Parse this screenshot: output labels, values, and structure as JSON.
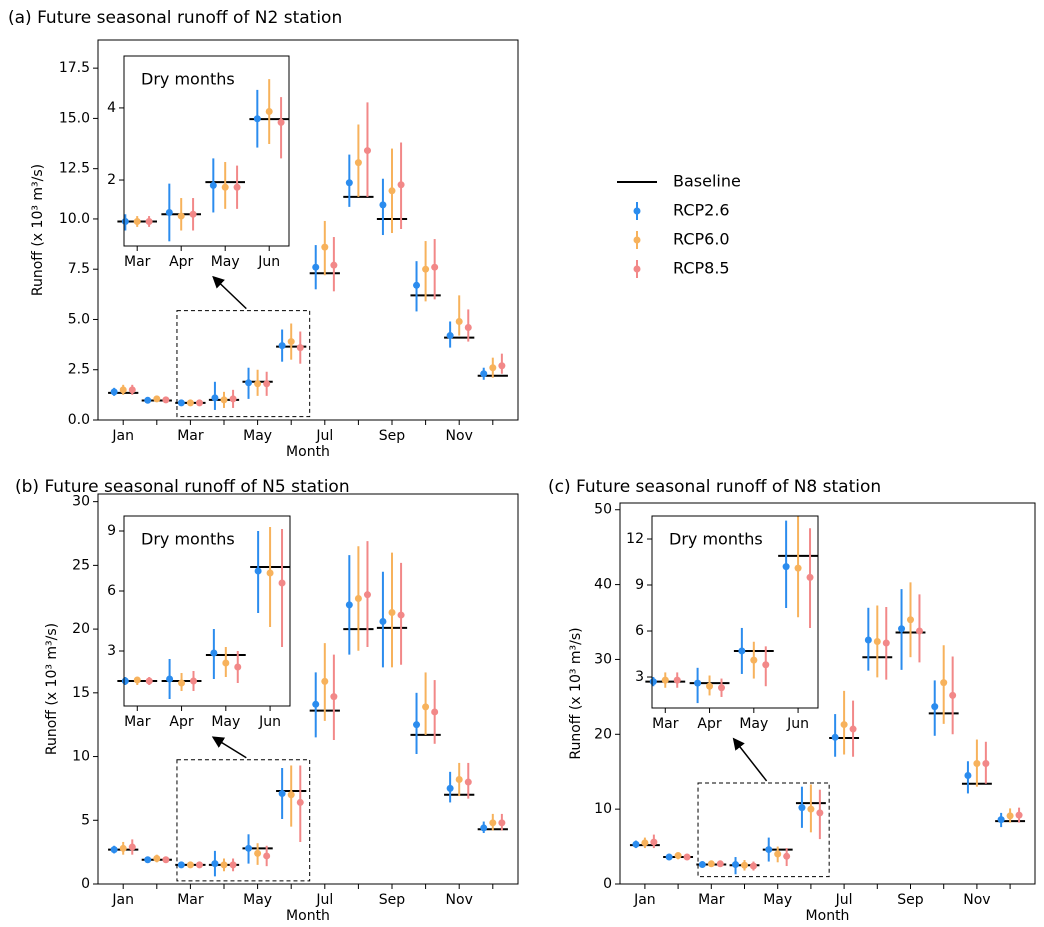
{
  "chart_data": [
    {
      "type": "errorbar",
      "title": "(a) Future seasonal runoff of N2 station",
      "x_label": "Month",
      "y_label": "Runoff (x 10³ m³/s)",
      "categories": [
        "Jan",
        null,
        "Mar",
        null,
        "May",
        null,
        "Jul",
        null,
        "Sep",
        null,
        "Nov",
        null
      ],
      "ylim": [
        0,
        18.9
      ],
      "yticks": [
        {
          "value": 0,
          "label": "0.0"
        },
        2.5,
        {
          "value": 5,
          "label": "5.0"
        },
        7.5,
        {
          "value": 10,
          "label": "10.0"
        },
        12.5,
        {
          "value": 15,
          "label": "15.0"
        },
        17.5
      ],
      "legend": "right",
      "series": [
        {
          "name": "Baseline",
          "marker": "hline",
          "color": "#000000",
          "values": [
            1.35,
            0.97,
            0.85,
            1.0,
            1.9,
            3.65,
            7.3,
            11.1,
            10.0,
            6.2,
            4.1,
            2.2
          ]
        },
        {
          "name": "RCP2.6",
          "marker": "errorbar",
          "color": "#2b8cee",
          "values": [
            1.4,
            0.98,
            0.85,
            1.1,
            1.85,
            3.7,
            7.6,
            11.8,
            10.7,
            6.7,
            4.2,
            2.3
          ],
          "lower": [
            1.2,
            0.85,
            0.7,
            0.5,
            1.05,
            2.9,
            6.5,
            10.6,
            9.2,
            5.4,
            3.6,
            2.0
          ],
          "upper": [
            1.6,
            1.1,
            1.0,
            1.9,
            2.6,
            4.5,
            8.7,
            13.2,
            12.0,
            7.9,
            4.9,
            2.6
          ]
        },
        {
          "name": "RCP6.0",
          "marker": "errorbar",
          "color": "#f7b25c",
          "values": [
            1.5,
            1.05,
            0.85,
            1.0,
            1.8,
            3.9,
            8.6,
            12.8,
            11.4,
            7.5,
            4.9,
            2.6
          ],
          "lower": [
            1.25,
            0.9,
            0.75,
            0.6,
            1.2,
            3.0,
            7.2,
            11.1,
            9.3,
            5.9,
            4.2,
            2.1
          ],
          "upper": [
            1.75,
            1.2,
            1.0,
            1.4,
            2.5,
            4.8,
            9.9,
            14.7,
            13.5,
            8.9,
            6.2,
            3.1
          ]
        },
        {
          "name": "RCP8.5",
          "marker": "errorbar",
          "color": "#f28888",
          "values": [
            1.5,
            1.0,
            0.85,
            1.05,
            1.8,
            3.6,
            7.7,
            13.4,
            11.7,
            7.6,
            4.6,
            2.7
          ],
          "lower": [
            1.25,
            0.9,
            0.75,
            0.6,
            1.2,
            2.8,
            6.4,
            11.1,
            9.5,
            6.0,
            3.9,
            2.3
          ],
          "upper": [
            1.75,
            1.1,
            1.0,
            1.5,
            2.4,
            4.4,
            9.1,
            15.8,
            13.8,
            9.0,
            5.5,
            3.3
          ]
        }
      ],
      "inset": {
        "title": "Dry months",
        "categories": [
          "Mar",
          "Apr",
          "May",
          "Jun"
        ],
        "ylim": [
          0.17,
          5.44
        ],
        "yticks": [
          2,
          4
        ],
        "series": [
          {
            "marker": "hline",
            "color": "#000000",
            "values": [
              0.85,
              1.05,
              1.94,
              3.69
            ]
          },
          {
            "marker": "errorbar",
            "color": "#2b8cee",
            "values": [
              0.85,
              1.1,
              1.85,
              3.7
            ],
            "lower": [
              0.6,
              0.3,
              1.1,
              2.9
            ],
            "upper": [
              1.05,
              1.9,
              2.6,
              4.5
            ]
          },
          {
            "marker": "errorbar",
            "color": "#f7b25c",
            "values": [
              0.85,
              1.0,
              1.8,
              3.9
            ],
            "lower": [
              0.7,
              0.6,
              1.2,
              3.0
            ],
            "upper": [
              1.0,
              1.5,
              2.5,
              4.8
            ]
          },
          {
            "marker": "errorbar",
            "color": "#f28888",
            "values": [
              0.85,
              1.05,
              1.8,
              3.6
            ],
            "lower": [
              0.7,
              0.6,
              1.2,
              2.6
            ],
            "upper": [
              1.0,
              1.5,
              2.4,
              4.3
            ]
          }
        ]
      }
    },
    {
      "type": "errorbar",
      "title": "(b) Future seasonal runoff of N5 station",
      "x_label": "Month",
      "y_label": "Runoff (x 10³ m³/s)",
      "categories": [
        "Jan",
        null,
        "Mar",
        null,
        "May",
        null,
        "Jul",
        null,
        "Sep",
        null,
        "Nov",
        null
      ],
      "ylim": [
        0,
        30.6
      ],
      "yticks": [
        0,
        5,
        10,
        15,
        20,
        25,
        30
      ],
      "series": [
        {
          "marker": "hline",
          "color": "#000000",
          "values": [
            2.7,
            1.9,
            1.5,
            1.5,
            2.8,
            7.3,
            13.6,
            20.0,
            20.1,
            11.7,
            7.0,
            4.3
          ]
        },
        {
          "marker": "errorbar",
          "color": "#2b8cee",
          "values": [
            2.7,
            1.9,
            1.5,
            1.6,
            2.8,
            7.1,
            14.1,
            21.9,
            20.6,
            12.5,
            7.5,
            4.4
          ],
          "lower": [
            2.4,
            1.7,
            1.3,
            0.6,
            1.6,
            5.1,
            11.5,
            18.0,
            17.0,
            10.2,
            6.4,
            4.0
          ],
          "upper": [
            3.0,
            2.1,
            1.7,
            2.6,
            3.9,
            9.1,
            16.6,
            25.8,
            24.5,
            15.0,
            8.8,
            4.9
          ]
        },
        {
          "marker": "errorbar",
          "color": "#f7b25c",
          "values": [
            2.8,
            2.0,
            1.5,
            1.5,
            2.4,
            7.0,
            15.9,
            22.4,
            21.3,
            13.9,
            8.2,
            4.8
          ],
          "lower": [
            2.3,
            1.7,
            1.3,
            1.0,
            1.5,
            4.5,
            12.8,
            18.3,
            17.0,
            11.7,
            6.9,
            4.2
          ],
          "upper": [
            3.3,
            2.3,
            1.7,
            2.0,
            3.2,
            9.3,
            18.9,
            26.5,
            26.0,
            16.6,
            9.5,
            5.5
          ]
        },
        {
          "marker": "errorbar",
          "color": "#f28888",
          "values": [
            2.9,
            1.9,
            1.5,
            1.5,
            2.2,
            6.4,
            14.7,
            22.7,
            21.1,
            13.5,
            8.0,
            4.8
          ],
          "lower": [
            2.3,
            1.7,
            1.3,
            1.0,
            1.4,
            3.3,
            11.3,
            18.6,
            17.2,
            11.0,
            6.7,
            4.2
          ],
          "upper": [
            3.5,
            2.1,
            1.7,
            2.0,
            3.0,
            9.3,
            18.0,
            26.9,
            25.2,
            16.0,
            9.5,
            5.5
          ]
        }
      ],
      "inset": {
        "title": "Dry months",
        "categories": [
          "Mar",
          "Apr",
          "May",
          "Jun"
        ],
        "ylim": [
          0.25,
          9.75
        ],
        "yticks": [
          3,
          6,
          9
        ],
        "series": [
          {
            "marker": "hline",
            "color": "#000000",
            "values": [
              1.5,
              1.5,
              2.8,
              7.2
            ]
          },
          {
            "marker": "errorbar",
            "color": "#2b8cee",
            "values": [
              1.5,
              1.6,
              2.9,
              7.0
            ],
            "lower": [
              1.3,
              0.6,
              1.6,
              4.9
            ],
            "upper": [
              1.7,
              2.6,
              4.1,
              9.0
            ]
          },
          {
            "marker": "errorbar",
            "color": "#f7b25c",
            "values": [
              1.55,
              1.4,
              2.4,
              6.9
            ],
            "lower": [
              1.3,
              1.0,
              1.7,
              4.2
            ],
            "upper": [
              1.7,
              1.9,
              3.2,
              9.2
            ]
          },
          {
            "marker": "errorbar",
            "color": "#f28888",
            "values": [
              1.5,
              1.5,
              2.2,
              6.4
            ],
            "lower": [
              1.3,
              1.0,
              1.4,
              3.2
            ],
            "upper": [
              1.7,
              2.0,
              3.0,
              9.1
            ]
          }
        ]
      }
    },
    {
      "type": "errorbar",
      "title": "(c) Future seasonal runoff of N8 station",
      "x_label": "Month",
      "y_label": "Runoff (x 10³ m³/s)",
      "categories": [
        "Jan",
        null,
        "Mar",
        null,
        "May",
        null,
        "Jul",
        null,
        "Sep",
        null,
        "Nov",
        null
      ],
      "ylim": [
        0,
        50.9
      ],
      "yticks": [
        0,
        10,
        20,
        30,
        40,
        50
      ],
      "series": [
        {
          "marker": "hline",
          "color": "#000000",
          "values": [
            5.2,
            3.6,
            2.6,
            2.5,
            4.6,
            10.8,
            19.5,
            30.3,
            33.6,
            22.8,
            13.4,
            8.4
          ]
        },
        {
          "marker": "errorbar",
          "color": "#2b8cee",
          "values": [
            5.3,
            3.6,
            2.6,
            2.6,
            4.6,
            10.2,
            19.6,
            32.6,
            34.1,
            23.7,
            14.5,
            8.6
          ],
          "lower": [
            4.8,
            3.3,
            2.3,
            1.3,
            3.0,
            7.5,
            17.0,
            28.5,
            28.6,
            19.8,
            12.1,
            7.6
          ],
          "upper": [
            5.8,
            3.9,
            2.9,
            3.6,
            6.2,
            13.0,
            22.7,
            36.9,
            39.4,
            27.2,
            16.4,
            9.5
          ]
        },
        {
          "marker": "errorbar",
          "color": "#f7b25c",
          "values": [
            5.5,
            3.8,
            2.7,
            2.5,
            4.0,
            10.0,
            21.3,
            32.4,
            35.3,
            26.9,
            16.1,
            9.1
          ],
          "lower": [
            4.8,
            3.3,
            2.3,
            1.8,
            2.9,
            6.9,
            17.3,
            27.6,
            30.3,
            21.4,
            13.0,
            8.2
          ],
          "upper": [
            6.2,
            4.2,
            3.1,
            3.2,
            5.0,
            13.3,
            25.8,
            37.2,
            40.3,
            31.9,
            19.3,
            10.1
          ]
        },
        {
          "marker": "errorbar",
          "color": "#f28888",
          "values": [
            5.6,
            3.6,
            2.7,
            2.4,
            3.7,
            9.5,
            20.7,
            32.2,
            33.8,
            25.2,
            16.1,
            9.2
          ],
          "lower": [
            4.8,
            3.3,
            2.3,
            1.8,
            2.4,
            6.0,
            17.0,
            27.3,
            29.6,
            20.0,
            13.4,
            8.2
          ],
          "upper": [
            6.6,
            3.9,
            3.1,
            3.0,
            4.8,
            12.6,
            24.5,
            37.0,
            38.7,
            30.4,
            19.0,
            10.2
          ]
        }
      ],
      "inset": {
        "title": "Dry months",
        "categories": [
          "Mar",
          "Apr",
          "May",
          "Jun"
        ],
        "ylim": [
          0.98,
          13.5
        ],
        "yticks": [
          3,
          6,
          9,
          12
        ],
        "series": [
          {
            "marker": "hline",
            "color": "#000000",
            "values": [
              2.7,
              2.6,
              4.7,
              10.9
            ]
          },
          {
            "marker": "errorbar",
            "color": "#2b8cee",
            "values": [
              2.7,
              2.6,
              4.7,
              10.2
            ],
            "lower": [
              2.4,
              1.3,
              3.2,
              7.5
            ],
            "upper": [
              3.0,
              3.6,
              6.2,
              13.2
            ]
          },
          {
            "marker": "errorbar",
            "color": "#f7b25c",
            "values": [
              2.8,
              2.4,
              4.1,
              10.1
            ],
            "lower": [
              2.3,
              1.8,
              2.9,
              6.9
            ],
            "upper": [
              3.3,
              3.1,
              5.3,
              13.5
            ]
          },
          {
            "marker": "errorbar",
            "color": "#f28888",
            "values": [
              2.8,
              2.3,
              3.8,
              9.5
            ],
            "lower": [
              2.3,
              1.7,
              2.4,
              6.2
            ],
            "upper": [
              3.3,
              2.9,
              5.0,
              12.7
            ]
          }
        ]
      }
    }
  ]
}
